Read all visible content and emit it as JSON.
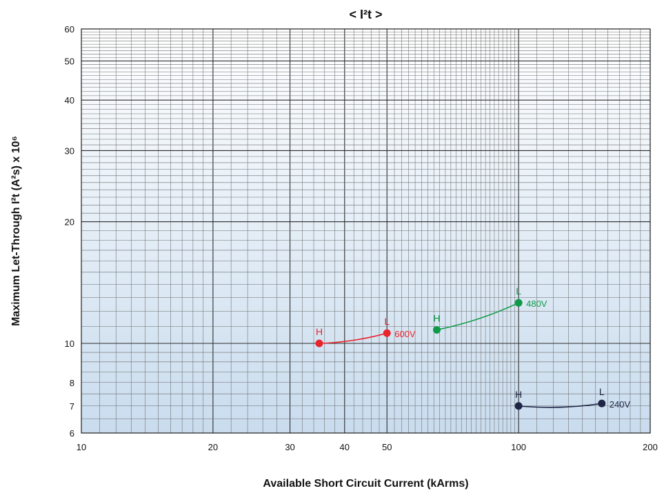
{
  "chart_data": {
    "type": "line",
    "title": "< I²t >",
    "xlabel": "Available Short Circuit Current (kArms)",
    "ylabel": "Maximum Let-Through I²t (A²s) x 10⁶",
    "x_scale": "log",
    "y_scale": "log",
    "xlim": [
      10,
      200
    ],
    "ylim": [
      6,
      60
    ],
    "x_ticks": [
      10,
      20,
      30,
      40,
      50,
      100,
      200
    ],
    "y_ticks": [
      6,
      7,
      8,
      10,
      20,
      30,
      40,
      50,
      60
    ],
    "grid": true,
    "series": [
      {
        "name": "600V",
        "color": "#e8242d",
        "points": [
          {
            "x": 35,
            "y": 10.0,
            "label": "H"
          },
          {
            "x": 50,
            "y": 10.6,
            "label": "L"
          }
        ]
      },
      {
        "name": "480V",
        "color": "#0f9a48",
        "points": [
          {
            "x": 65,
            "y": 10.8,
            "label": "H"
          },
          {
            "x": 100,
            "y": 12.6,
            "label": "L"
          }
        ]
      },
      {
        "name": "240V",
        "color": "#1f2544",
        "points": [
          {
            "x": 100,
            "y": 7.0,
            "label": "H"
          },
          {
            "x": 155,
            "y": 7.1,
            "label": "L"
          }
        ]
      }
    ]
  }
}
